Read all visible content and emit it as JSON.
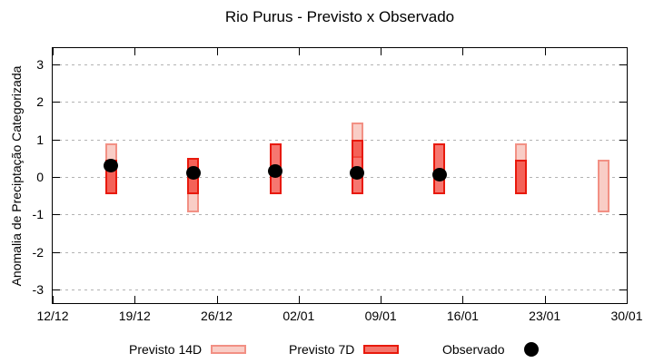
{
  "title": "Rio Purus - Previsto x Observado",
  "y_axis_label": "Anomalia de Preciptação Categorizada",
  "legend": {
    "previsto_14d": "Previsto 14D",
    "previsto_7d": "Previsto 7D",
    "observado": "Observado"
  },
  "colors": {
    "p14_fill": "#f9cdc6",
    "p14_border": "#f29084",
    "p7_fill": "rgba(240,20,8,0.58)",
    "p7_fill_flat": "#f4766d",
    "p7_border": "#e8190c",
    "dot": "#000000",
    "grid": "#b3b3b3",
    "frame": "#000000"
  },
  "chart_data": {
    "type": "bar",
    "title": "Rio Purus - Previsto x Observado",
    "ylabel": "Anomalia de Preciptação Categorizada",
    "xlabel": "",
    "x_tick_labels": [
      "12/12",
      "19/12",
      "26/12",
      "02/01",
      "09/01",
      "16/01",
      "23/01",
      "30/01"
    ],
    "x_tick_days": [
      0,
      7,
      14,
      21,
      28,
      35,
      42,
      49
    ],
    "y_ticks": [
      3,
      2,
      1,
      0,
      -1,
      -2,
      -3
    ],
    "ylim": [
      -3.4,
      3.45
    ],
    "xlim_days": [
      0,
      49
    ],
    "grid": "horizontal-dotted",
    "legend_position": "bottom",
    "series": [
      {
        "name": "Previsto 14D",
        "style": "range-bar",
        "points": [
          {
            "date": "17/12",
            "day": 5,
            "low": -0.45,
            "high": 0.9
          },
          {
            "date": "24/12",
            "day": 12,
            "low": -0.95,
            "high": 0.5
          },
          {
            "date": "07/01",
            "day": 26,
            "low": 0.5,
            "high": 1.45
          },
          {
            "date": "21/01",
            "day": 40,
            "low": -0.45,
            "high": 0.9
          },
          {
            "date": "28/01",
            "day": 47,
            "low": -0.95,
            "high": 0.45
          }
        ]
      },
      {
        "name": "Previsto 7D",
        "style": "range-bar",
        "points": [
          {
            "date": "17/12",
            "day": 5,
            "low": -0.45,
            "high": 0.45
          },
          {
            "date": "24/12",
            "day": 12,
            "low": -0.45,
            "high": 0.5
          },
          {
            "date": "31/12",
            "day": 19,
            "low": -0.45,
            "high": 0.9
          },
          {
            "date": "07/01",
            "day": 26,
            "low": -0.45,
            "high": 1.0
          },
          {
            "date": "14/01",
            "day": 33,
            "low": -0.45,
            "high": 0.9
          },
          {
            "date": "21/01",
            "day": 40,
            "low": -0.45,
            "high": 0.45
          }
        ]
      },
      {
        "name": "Observado",
        "style": "dot",
        "points": [
          {
            "date": "17/12",
            "day": 5,
            "value": 0.3
          },
          {
            "date": "24/12",
            "day": 12,
            "value": 0.1
          },
          {
            "date": "31/12",
            "day": 19,
            "value": 0.15
          },
          {
            "date": "07/01",
            "day": 26,
            "value": 0.1
          },
          {
            "date": "14/01",
            "day": 33,
            "value": 0.05
          }
        ]
      }
    ]
  }
}
